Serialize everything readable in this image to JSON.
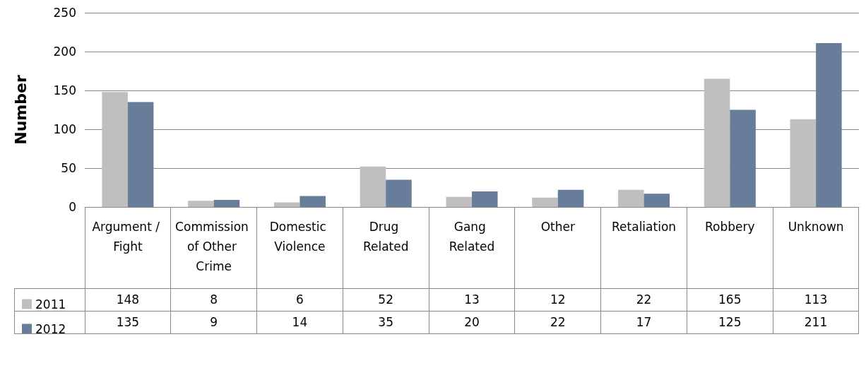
{
  "chart_data": {
    "type": "bar",
    "ylabel": "Number",
    "categories": [
      "Argument / Fight",
      "Commission of Other Crime",
      "Domestic Violence",
      "Drug Related",
      "Gang Related",
      "Other",
      "Retaliation",
      "Robbery",
      "Unknown"
    ],
    "series": [
      {
        "name": "2011",
        "color": "#bfbfbf",
        "values": [
          148,
          8,
          6,
          52,
          13,
          12,
          22,
          165,
          113
        ]
      },
      {
        "name": "2012",
        "color": "#677d99",
        "values": [
          135,
          9,
          14,
          35,
          20,
          22,
          17,
          125,
          211
        ]
      }
    ],
    "ylim": [
      0,
      250
    ],
    "yticks": [
      0,
      50,
      100,
      150,
      200,
      250
    ],
    "grid": "y",
    "legend": "bottom left",
    "data_labels": true
  }
}
